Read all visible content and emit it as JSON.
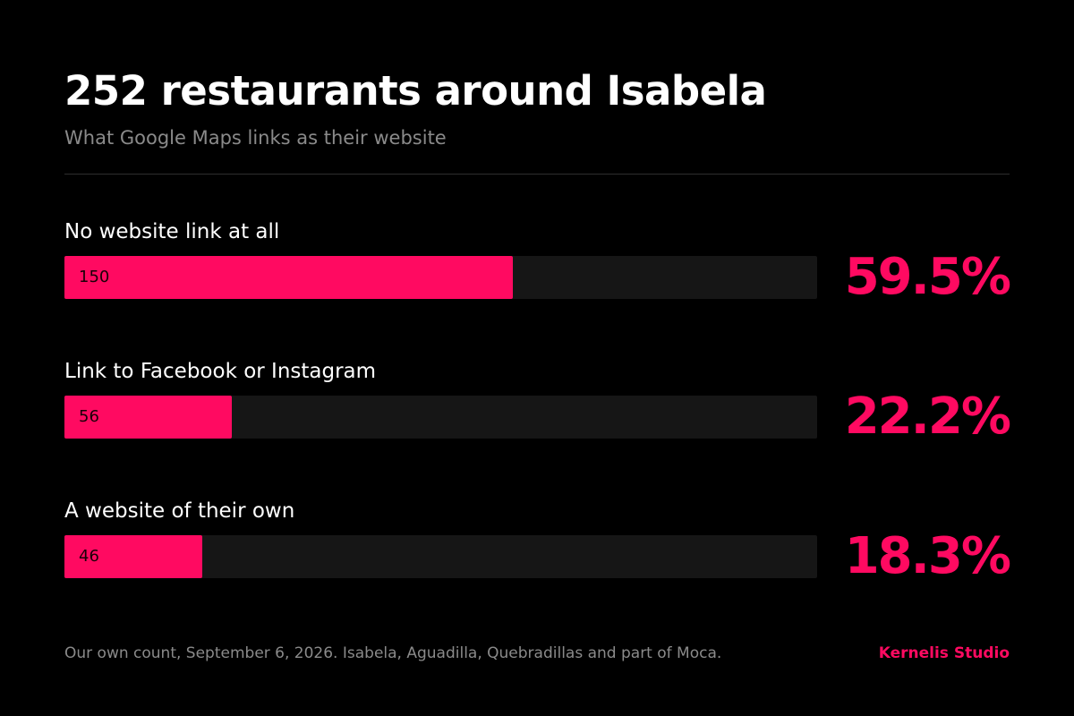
{
  "title": "252 restaurants around Isabela",
  "subtitle": "What Google Maps links as their website",
  "colors": {
    "accent": "#ff0a61",
    "background": "#000000",
    "track": "#161616",
    "muted_text": "#8a8a8a"
  },
  "chart_data": {
    "type": "bar",
    "orientation": "horizontal",
    "title": "252 restaurants around Isabela",
    "subtitle": "What Google Maps links as their website",
    "total": 252,
    "categories": [
      "No website link at all",
      "Link to Facebook or Instagram",
      "A website of their own"
    ],
    "values": [
      150,
      56,
      46
    ],
    "percent_labels": [
      "59.5%",
      "22.2%",
      "18.3%"
    ],
    "xlim": [
      0,
      252
    ],
    "grid": false,
    "legend": "none"
  },
  "footnote": "Our own count, September 6, 2026. Isabela, Aguadilla, Quebradillas and part of Moca.",
  "brand": "Kernelis Studio"
}
